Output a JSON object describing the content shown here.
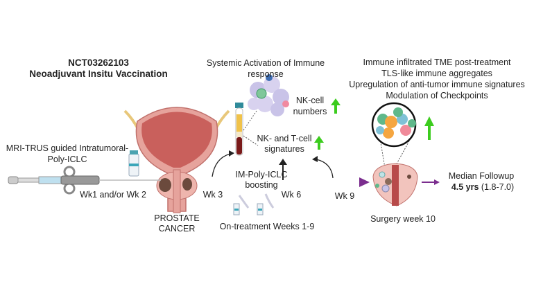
{
  "title": {
    "line1": "NCT03262103",
    "line2": "Neoadjuvant Insitu Vaccination"
  },
  "systemic": {
    "line1": "Systemic Activation of Immune",
    "line2": "response"
  },
  "tme_findings": [
    "Immune infiltrated TME post-treatment",
    "TLS-like immune aggregates",
    "Upregulation of anti-tumor immune signatures",
    "Modulation of Checkpoints"
  ],
  "nk_cell": {
    "line1": "NK-cell",
    "line2": "numbers"
  },
  "signatures": {
    "line1": "NK- and T-cell",
    "line2": "signatures"
  },
  "injection": {
    "line1": "MRI-TRUS guided Intratumoral-",
    "line2": "Poly-ICLC"
  },
  "timeline": {
    "wk12": "Wk1 and/or Wk 2",
    "wk3": "Wk 3",
    "wk6": "Wk 6",
    "wk9": "Wk 9"
  },
  "boost": {
    "line1": "IM-Poly-ICLC",
    "line2": "boosting"
  },
  "prostate": {
    "line1": "PROSTATE",
    "line2": "CANCER"
  },
  "on_treatment": "On-treatment Weeks 1-9",
  "surgery": "Surgery week 10",
  "followup": {
    "line1": "Median Followup",
    "bold": "4.5 yrs",
    "range": " (1.8-7.0)"
  },
  "colors": {
    "timeline_arrow": "#7b2d8e",
    "up_arrow": "#3ccc1e",
    "bladder": "#d98a86"
  }
}
